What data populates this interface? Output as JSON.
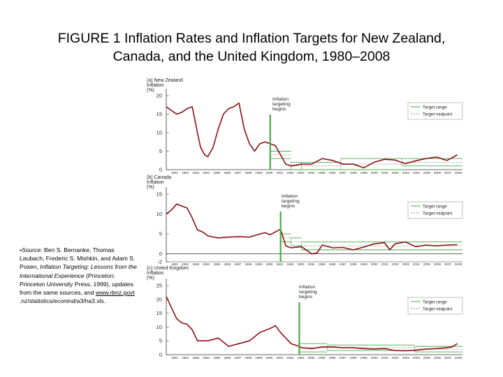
{
  "title": {
    "line1": "FIGURE 1  Inflation Rates and Inflation Targets for New Zealand,",
    "line2": "Canada, and the United Kingdom, 1980–2008"
  },
  "source_note": {
    "lead": "•Source:",
    "p1": " Ben S. Bernanke, Thomas Laubach, Frederic S. Mishkin, and Adam S. Posen, ",
    "book": "Inflation Targeting: Lessons from the International Experience",
    "p2": " (Princeton: Princeton University Press, 1999), updates from the same sources, and ",
    "link": "www.rbnz.govt",
    "p3": " .nz/statistics/econind/a3/ha3.xls."
  },
  "chart_data": [
    {
      "type": "line",
      "panel_label": "(a) New Zealand",
      "ylabel_lines": [
        "Inflation",
        "(%)"
      ],
      "ylim": [
        0,
        20
      ],
      "yticks": [
        "0",
        "5",
        "10",
        "15",
        "20"
      ],
      "xlim": [
        1980,
        2008.5
      ],
      "xticks": [
        "1981",
        "1982",
        "1983",
        "1984",
        "1985",
        "1986",
        "1987",
        "1988",
        "1989",
        "1990",
        "1991",
        "1992",
        "1993",
        "1994",
        "1995",
        "1996",
        "1997",
        "1998",
        "1999",
        "2000",
        "2001",
        "2002",
        "2003",
        "2004",
        "2005",
        "2006",
        "2007",
        "2008"
      ],
      "annotation_lines": [
        "Inflation",
        "targeting",
        "begins"
      ],
      "targeting_start": 1990,
      "legend": {
        "range": "Target range",
        "midpoint": "Target midpoint"
      },
      "target_bands": [
        {
          "from": 1990,
          "to": 1992,
          "low": 3,
          "high": 5
        },
        {
          "from": 1992,
          "to": 1993,
          "low": 0,
          "high": 2
        },
        {
          "from": 1993,
          "to": 1996.8,
          "low": 0,
          "high": 2
        },
        {
          "from": 1996.8,
          "to": 2002.7,
          "low": 0,
          "high": 3
        },
        {
          "from": 2002.7,
          "to": 2008.5,
          "low": 1,
          "high": 3
        }
      ],
      "series": [
        {
          "name": "Inflation",
          "x": [
            1980,
            1980.5,
            1981,
            1981.5,
            1982,
            1982.5,
            1983,
            1983.3,
            1983.7,
            1984,
            1984.5,
            1985,
            1985.5,
            1986,
            1986.5,
            1987,
            1987.5,
            1988,
            1988.5,
            1989,
            1989.5,
            1990,
            1990.5,
            1991,
            1991.5,
            1992,
            1993,
            1994,
            1995,
            1996,
            1997,
            1998,
            1999,
            2000,
            2001,
            2002,
            2003,
            2004,
            2005,
            2006,
            2007,
            2007.5,
            2008
          ],
          "y": [
            17,
            16,
            15,
            15.5,
            16.5,
            17,
            10,
            6,
            4,
            3.5,
            6,
            11,
            15,
            16.5,
            17,
            18,
            11,
            7,
            5,
            7,
            7.5,
            7,
            6.5,
            4,
            1.5,
            1,
            1.5,
            1.5,
            3,
            2.5,
            1.5,
            1.5,
            0.5,
            2,
            2.8,
            2.6,
            1.6,
            2.4,
            3,
            3.4,
            2.5,
            3.2,
            4
          ]
        }
      ]
    },
    {
      "type": "line",
      "panel_label": "(b) Canada",
      "ylabel_lines": [
        "Inflation",
        "(%)"
      ],
      "ylim": [
        -2,
        15
      ],
      "yticks": [
        "-2",
        "0",
        "5",
        "10",
        "15"
      ],
      "xlim": [
        1980,
        2008.5
      ],
      "xticks": [
        "1981",
        "1982",
        "1983",
        "1984",
        "1985",
        "1986",
        "1987",
        "1988",
        "1989",
        "1990",
        "1991",
        "1992",
        "1993",
        "1994",
        "1995",
        "1996",
        "1997",
        "1998",
        "1999",
        "2000",
        "2001",
        "2002",
        "2003",
        "2004",
        "2005",
        "2006",
        "2007",
        "2008"
      ],
      "annotation_lines": [
        "Inflation",
        "targeting",
        "begins"
      ],
      "targeting_start": 1991,
      "legend": {
        "range": "Target range",
        "midpoint": "Target midpoint"
      },
      "target_bands": [
        {
          "from": 1991,
          "to": 1992,
          "low": 3,
          "high": 5
        },
        {
          "from": 1992,
          "to": 1993,
          "low": 2,
          "high": 4
        },
        {
          "from": 1993,
          "to": 2008.5,
          "low": 1,
          "high": 3
        }
      ],
      "series": [
        {
          "name": "Inflation",
          "x": [
            1980,
            1980.5,
            1981,
            1981.5,
            1982,
            1982.5,
            1983,
            1983.5,
            1984,
            1985,
            1986,
            1987,
            1988,
            1989,
            1989.5,
            1990,
            1990.5,
            1991,
            1991.5,
            1992,
            1993,
            1994,
            1994.5,
            1995,
            1996,
            1997,
            1998,
            1999,
            2000,
            2001,
            2001.5,
            2002,
            2003,
            2004,
            2005,
            2006,
            2007,
            2008
          ],
          "y": [
            10,
            11,
            12.5,
            12,
            11.5,
            9,
            6,
            5.5,
            4.5,
            4,
            4.2,
            4.3,
            4.2,
            5,
            5.3,
            4.8,
            5.5,
            6.2,
            2,
            1.5,
            1.8,
            0,
            0.2,
            2.2,
            1.5,
            1.6,
            1,
            1.7,
            2.5,
            2.8,
            1,
            2.5,
            3,
            1.8,
            2.2,
            2,
            2.2,
            2.3
          ]
        }
      ]
    },
    {
      "type": "line",
      "panel_label": "(c) United Kingdom",
      "ylabel_lines": [
        "Inflation",
        "(%)"
      ],
      "ylim": [
        0,
        25
      ],
      "yticks": [
        "0",
        "5",
        "10",
        "15",
        "20",
        "25"
      ],
      "xlim": [
        1980,
        2008.5
      ],
      "xticks": [
        "1981",
        "1982",
        "1983",
        "1984",
        "1985",
        "1986",
        "1987",
        "1988",
        "1989",
        "1990",
        "1991",
        "1992",
        "1993",
        "1994",
        "1995",
        "1996",
        "1997",
        "1998",
        "1999",
        "2000",
        "2001",
        "2002",
        "2003",
        "2004",
        "2005",
        "2006",
        "2007",
        "2008"
      ],
      "annotation_lines": [
        "Inflation",
        "targeting",
        "begins"
      ],
      "targeting_start": 1992.8,
      "legend": {
        "range": "Target range",
        "midpoint": "Target midpoint"
      },
      "target_bands": [
        {
          "from": 1992.8,
          "to": 1995.5,
          "low": 1,
          "high": 4
        },
        {
          "from": 1995.5,
          "to": 2003.9,
          "low": 1.5,
          "high": 3.5
        },
        {
          "from": 2003.9,
          "to": 2008.5,
          "low": 1,
          "high": 3
        }
      ],
      "series": [
        {
          "name": "Inflation",
          "x": [
            1980,
            1980.5,
            1981,
            1981.5,
            1982,
            1982.5,
            1983,
            1984,
            1985,
            1986,
            1987,
            1988,
            1988.5,
            1989,
            1990,
            1990.5,
            1991,
            1991.5,
            1992,
            1992.8,
            1993,
            1994,
            1995,
            1996,
            1997,
            1998,
            1999,
            2000,
            2001,
            2002,
            2003,
            2004,
            2005,
            2006,
            2007,
            2007.5,
            2008
          ],
          "y": [
            21,
            17,
            13,
            11.5,
            11,
            9,
            5,
            5,
            6,
            3,
            4,
            5,
            6.5,
            8,
            9.5,
            10.5,
            8,
            6,
            4,
            3,
            2.5,
            2.2,
            2.8,
            2.8,
            2.5,
            2.5,
            2.2,
            2,
            2.2,
            1.5,
            1.4,
            1.6,
            2,
            2.2,
            2.5,
            2.8,
            4
          ]
        }
      ]
    }
  ]
}
